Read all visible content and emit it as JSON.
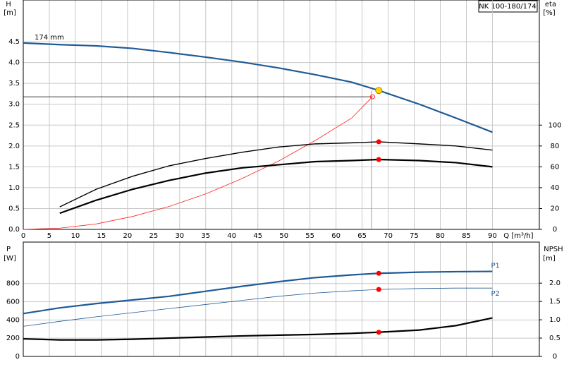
{
  "chart_data": [
    {
      "type": "line",
      "title": "NK 100-180/174",
      "ylabel": "H",
      "yunit": "[m]",
      "y2label": "eta",
      "y2unit": "[%]",
      "xlabel": "Q [m³/h]",
      "xlim": [
        0,
        99
      ],
      "xticks": [
        0,
        5,
        10,
        15,
        20,
        25,
        30,
        35,
        40,
        45,
        50,
        55,
        60,
        65,
        70,
        75,
        80,
        85,
        90
      ],
      "show_xtick_labels": true,
      "ylim": [
        0,
        5.5
      ],
      "yticks": [
        {
          "value": 0,
          "label": "0.0"
        },
        0.5,
        {
          "value": 1,
          "label": "1.0"
        },
        1.5,
        {
          "value": 2,
          "label": "2.0"
        },
        2.5,
        {
          "value": 3,
          "label": "3.0"
        },
        3.5,
        {
          "value": 4,
          "label": "4.0"
        },
        4.5
      ],
      "y2lim": [
        0,
        220
      ],
      "y2ticks": [
        0,
        20,
        40,
        60,
        80,
        100
      ],
      "grid": true,
      "series": [
        {
          "name": "174 mm",
          "label_at": "start",
          "color": "#1f5a96",
          "style": "thick",
          "x": [
            0,
            7,
            14,
            21,
            28,
            35,
            42,
            49,
            56,
            63,
            68.2,
            76,
            83,
            90
          ],
          "values": [
            4.47,
            4.43,
            4.4,
            4.34,
            4.24,
            4.13,
            4.01,
            3.87,
            3.71,
            3.53,
            3.33,
            3.0,
            2.67,
            2.33
          ]
        },
        {
          "color": "#ff2020",
          "style": "thin",
          "x": [
            0,
            7,
            14,
            21,
            28,
            35,
            42,
            49,
            56,
            63,
            67
          ],
          "values": [
            0,
            0.03,
            0.13,
            0.31,
            0.55,
            0.85,
            1.22,
            1.64,
            2.13,
            2.67,
            3.18
          ]
        },
        {
          "color": "#000000",
          "style": "thin",
          "x": [
            0,
            67
          ],
          "values": [
            3.18,
            3.18
          ]
        },
        {
          "color": "#888888",
          "style": "thin",
          "x": [
            66.8,
            66.8
          ],
          "values": [
            0,
            3.33
          ]
        },
        {
          "color": "#000000",
          "style": "medium",
          "axis": "y2",
          "x": [
            7,
            14,
            21,
            28,
            35,
            42,
            49,
            56,
            63,
            68.2,
            76,
            83,
            90
          ],
          "values": [
            21.6,
            38.5,
            51,
            61,
            68,
            74,
            79,
            82,
            83,
            84,
            82,
            80,
            76
          ]
        },
        {
          "color": "#000000",
          "style": "thick",
          "axis": "y2",
          "x": [
            7,
            14,
            21,
            28,
            35,
            42,
            49,
            56,
            63,
            68.2,
            76,
            83,
            90
          ],
          "values": [
            15.5,
            28,
            38.5,
            47,
            54,
            59,
            62,
            65,
            66,
            67,
            66,
            64,
            60
          ]
        },
        {
          "color": "#ff2020",
          "style": "ring",
          "x": [
            67
          ],
          "values": [
            3.18
          ]
        },
        {
          "color": "#ffd800",
          "style": "bigdot",
          "x": [
            68.2
          ],
          "values": [
            3.33
          ]
        },
        {
          "color": "#ff0000",
          "style": "dot",
          "axis": "y2",
          "x": [
            68.2,
            68.2
          ],
          "values": [
            84,
            67
          ]
        }
      ]
    },
    {
      "type": "line",
      "ylabel": "P",
      "yunit": "[W]",
      "y2label": "NPSH",
      "y2unit": "[m]",
      "xlim": [
        0,
        99
      ],
      "xticks": [
        0,
        5,
        10,
        15,
        20,
        25,
        30,
        35,
        40,
        45,
        50,
        55,
        60,
        65,
        70,
        75,
        80,
        85,
        90
      ],
      "show_xtick_labels": false,
      "ylim": [
        0,
        1255
      ],
      "yticks": [
        0,
        200,
        400,
        600,
        800
      ],
      "y2lim": [
        0,
        3.12
      ],
      "y2ticks": [
        0,
        0.5,
        {
          "value": 1,
          "label": "1.0"
        },
        1.5,
        {
          "value": 2,
          "label": "2.0"
        }
      ],
      "grid": true,
      "series": [
        {
          "name": "P1",
          "label_at": "end",
          "color": "#1f5a96",
          "style": "thick",
          "x": [
            0,
            7,
            14,
            21,
            28,
            35,
            42,
            49,
            56,
            63,
            68.2,
            76,
            83,
            90
          ],
          "values": [
            470,
            533,
            580,
            620,
            660,
            715,
            770,
            820,
            865,
            895,
            912,
            925,
            930,
            933
          ]
        },
        {
          "name": "P2",
          "label_at": "end-below",
          "color": "#1f5a96",
          "style": "thin",
          "x": [
            0,
            7,
            14,
            21,
            28,
            35,
            42,
            49,
            56,
            63,
            68.2,
            76,
            83,
            90
          ],
          "values": [
            330,
            385,
            435,
            480,
            525,
            570,
            615,
            660,
            695,
            720,
            735,
            745,
            750,
            750
          ]
        },
        {
          "color": "#000000",
          "style": "thick",
          "axis": "y2",
          "x": [
            0,
            7,
            14,
            21,
            28,
            35,
            42,
            49,
            56,
            63,
            68.2,
            76,
            83,
            90
          ],
          "values": [
            0.48,
            0.45,
            0.45,
            0.47,
            0.5,
            0.53,
            0.56,
            0.58,
            0.6,
            0.63,
            0.66,
            0.72,
            0.84,
            1.05
          ]
        },
        {
          "color": "#ff0000",
          "style": "dot",
          "x": [
            68.2,
            68.2
          ],
          "values": [
            912,
            735
          ]
        },
        {
          "color": "#ff0000",
          "style": "dot",
          "axis": "y2",
          "x": [
            68.2
          ],
          "values": [
            0.66
          ]
        }
      ]
    }
  ]
}
